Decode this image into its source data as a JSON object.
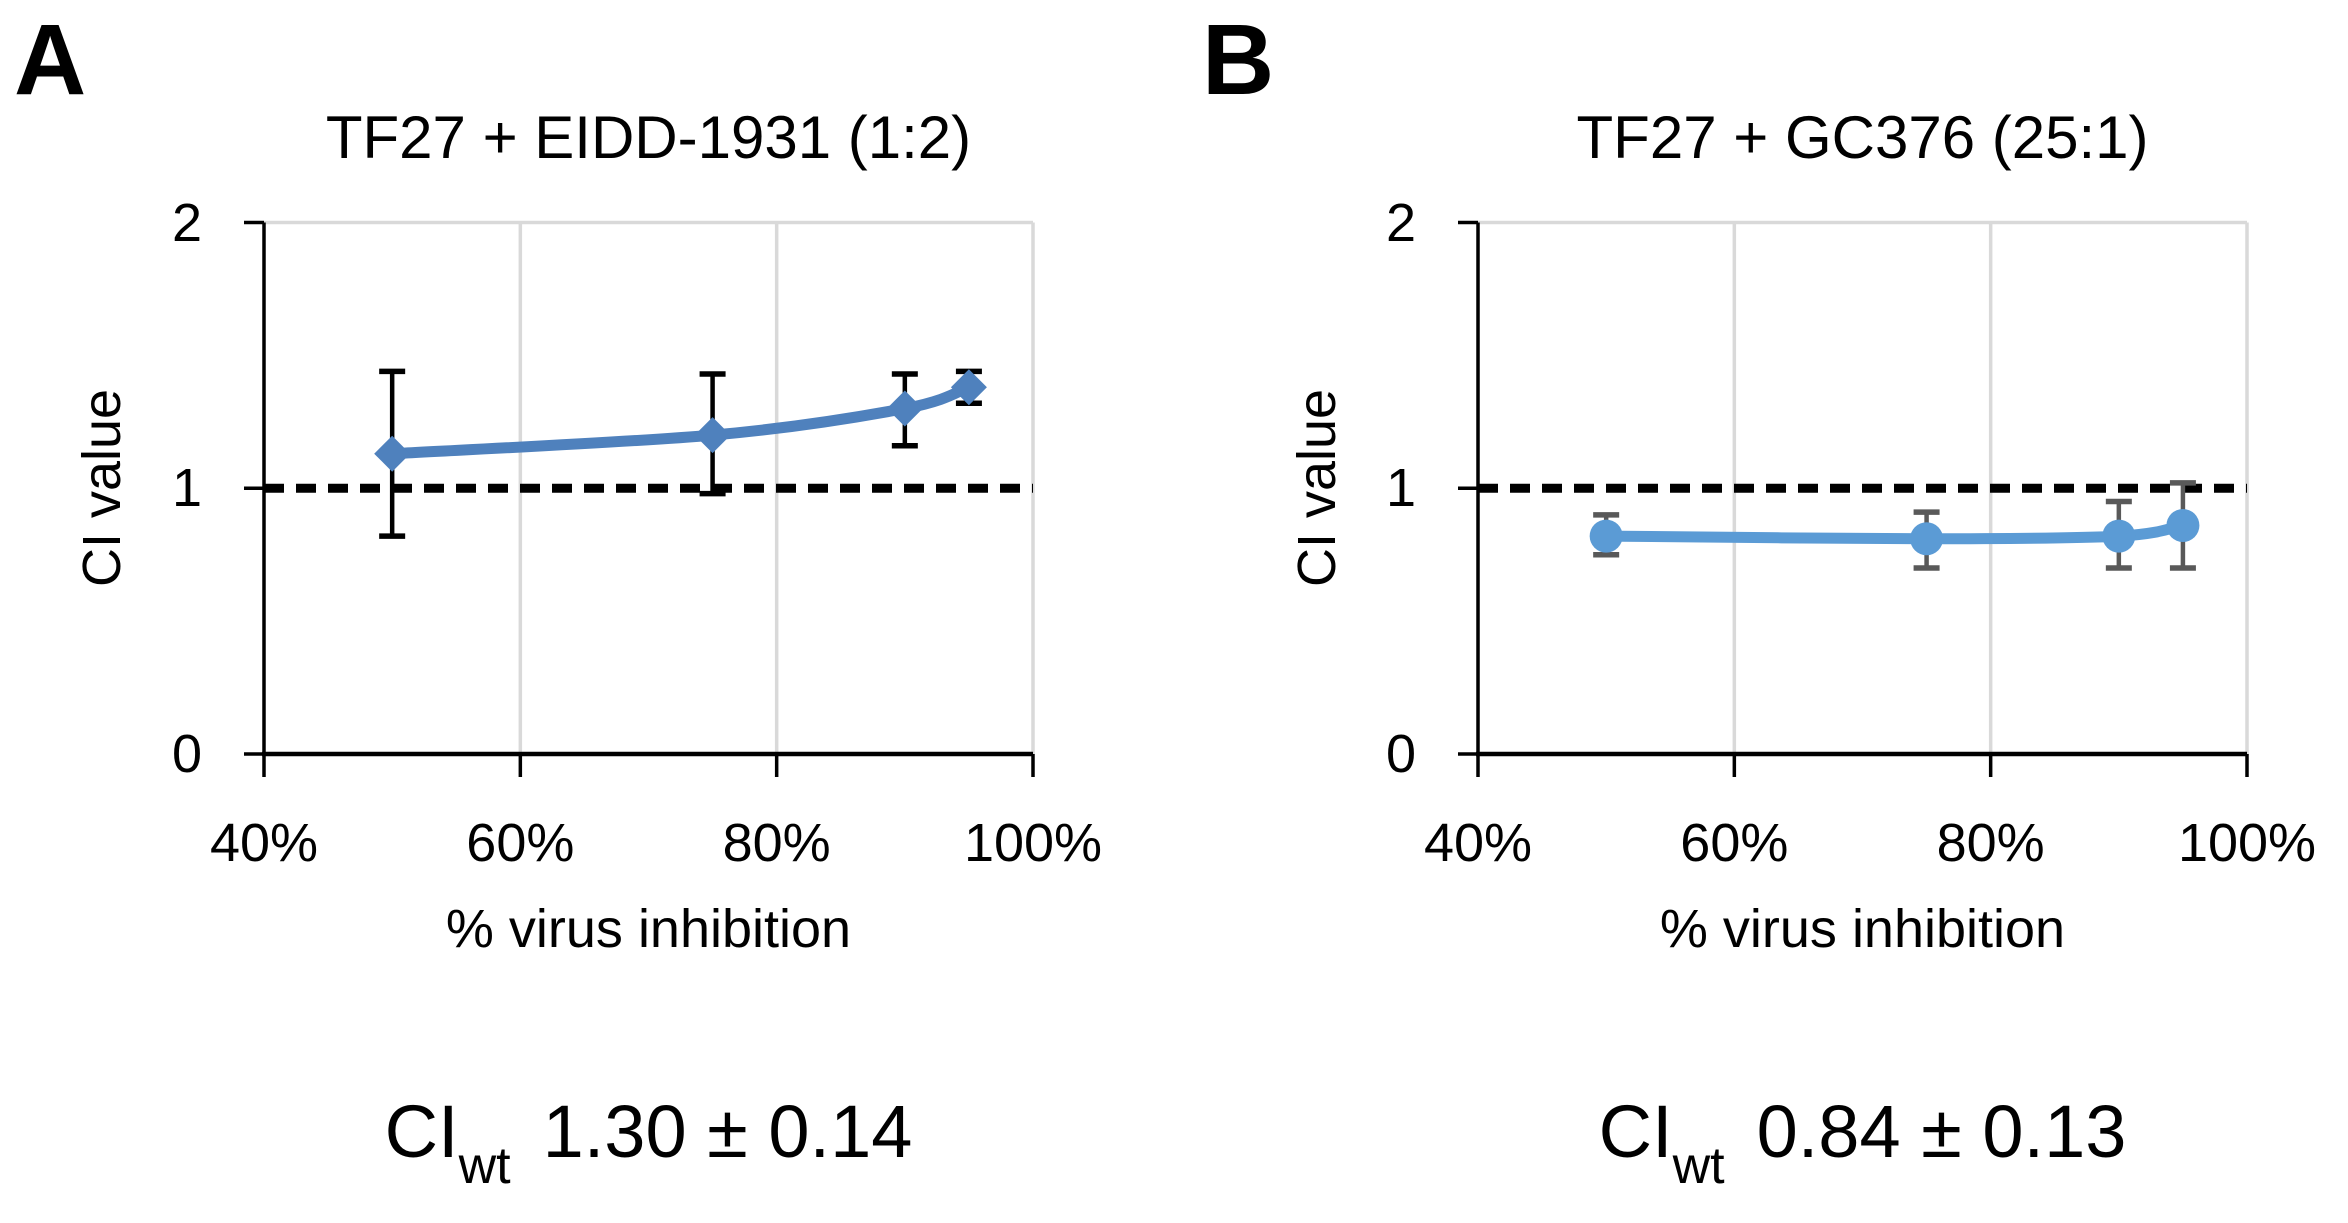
{
  "figure_background": "#FFFFFF",
  "panels": [
    {
      "panel_label": "A",
      "title": "TF27 + EIDD-1931 (1:2)",
      "y_axis_title": "CI value",
      "x_axis_title": "% virus inhibition",
      "ci_prefix": "CI",
      "ci_subscript": "wt",
      "ci_value": "1.30 ± 0.14"
    },
    {
      "panel_label": "B",
      "title": "TF27 + GC376 (25:1)",
      "y_axis_title": "CI value",
      "x_axis_title": "% virus inhibition",
      "ci_prefix": "CI",
      "ci_subscript": "wt",
      "ci_value": "0.84 ± 0.13"
    }
  ],
  "chart_data": [
    {
      "type": "line",
      "title": "TF27 + EIDD-1931 (1:2)",
      "xlabel": "% virus inhibition",
      "ylabel": "CI value",
      "xlim": [
        40,
        100
      ],
      "ylim": [
        0,
        2
      ],
      "x_tick_values": [
        40,
        60,
        80,
        100
      ],
      "x_tick_labels": [
        "40%",
        "60%",
        "80%",
        "100%"
      ],
      "y_tick_values": [
        0,
        1,
        2
      ],
      "y_tick_labels": [
        "0",
        "1",
        "2"
      ],
      "grid_x_values": [
        60,
        80,
        100
      ],
      "grid_on": true,
      "reference_line_y": 1,
      "reference_line_style": "dashed",
      "series": [
        {
          "name": "TF27 + EIDD-1931 (1:2)",
          "marker": "diamond",
          "line_color": "#4F81BD",
          "error_bar_color": "#000000",
          "x": [
            50,
            75,
            90,
            95
          ],
          "y": [
            1.13,
            1.2,
            1.3,
            1.38
          ],
          "y_err_low": [
            0.82,
            0.98,
            1.16,
            1.32
          ],
          "y_err_high": [
            1.44,
            1.43,
            1.43,
            1.44
          ]
        }
      ],
      "annotation": "CI_wt 1.30 ± 0.14"
    },
    {
      "type": "line",
      "title": "TF27 + GC376 (25:1)",
      "xlabel": "% virus inhibition",
      "ylabel": "CI value",
      "xlim": [
        40,
        100
      ],
      "ylim": [
        0,
        2
      ],
      "x_tick_values": [
        40,
        60,
        80,
        100
      ],
      "x_tick_labels": [
        "40%",
        "60%",
        "80%",
        "100%"
      ],
      "y_tick_values": [
        0,
        1,
        2
      ],
      "y_tick_labels": [
        "0",
        "1",
        "2"
      ],
      "grid_x_values": [
        60,
        80,
        100
      ],
      "grid_on": true,
      "reference_line_y": 1,
      "reference_line_style": "dashed",
      "series": [
        {
          "name": "TF27 + GC376 (25:1)",
          "marker": "circle",
          "line_color": "#5B9BD5",
          "error_bar_color": "#595959",
          "x": [
            50,
            75,
            90,
            95
          ],
          "y": [
            0.82,
            0.81,
            0.82,
            0.86
          ],
          "y_err_low": [
            0.75,
            0.7,
            0.7,
            0.7
          ],
          "y_err_high": [
            0.9,
            0.91,
            0.95,
            1.02
          ]
        }
      ],
      "annotation": "CI_wt 0.84 ± 0.13"
    }
  ],
  "colors": {
    "gridline": "#D9D9D9",
    "axis": "#000000",
    "reference_line": "#000000",
    "panel_a_series": "#4F81BD",
    "panel_b_series": "#5B9BD5",
    "panel_b_error_bars": "#595959",
    "text": "#000000"
  }
}
